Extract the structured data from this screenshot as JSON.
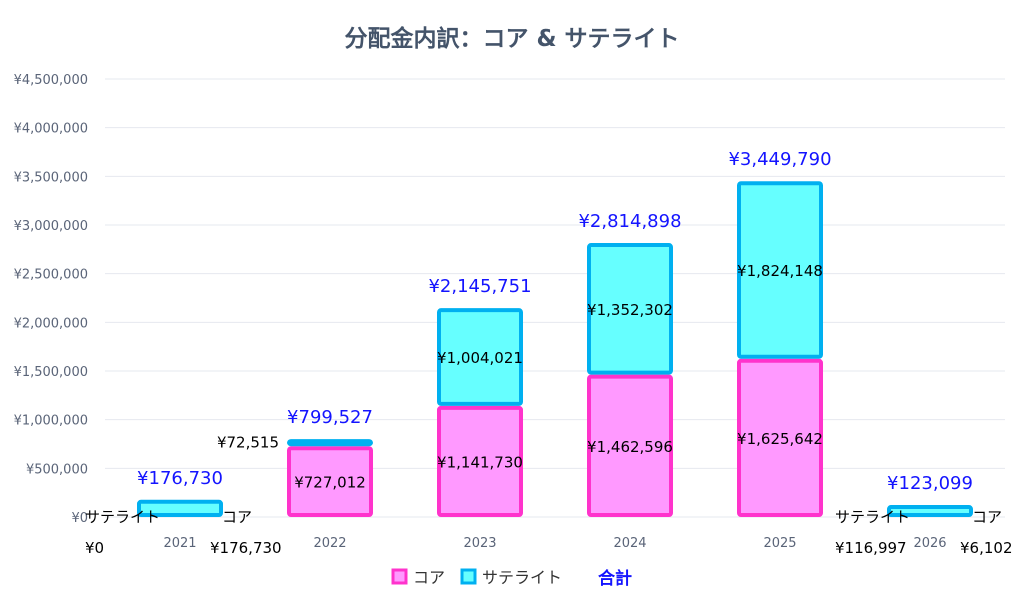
{
  "chart_data": {
    "type": "bar",
    "stacked": true,
    "title": "分配金内訳：コア & サテライト",
    "xlabel": "",
    "ylabel": "",
    "ylim": [
      0,
      4500000
    ],
    "y_ticks": [
      0,
      500000,
      1000000,
      1500000,
      2000000,
      2500000,
      3000000,
      3500000,
      4000000,
      4500000
    ],
    "y_tick_labels": [
      "¥0",
      "¥500,000",
      "¥1,000,000",
      "¥1,500,000",
      "¥2,000,000",
      "¥2,500,000",
      "¥3,000,000",
      "¥3,500,000",
      "¥4,000,000",
      "¥4,500,000"
    ],
    "grid": true,
    "categories": [
      "2021",
      "2022",
      "2023",
      "2024",
      "2025",
      "2026"
    ],
    "series": [
      {
        "name": "コア",
        "fill": "#ff99ff",
        "stroke": "#ff33cc",
        "values": [
          176730,
          727012,
          1141730,
          1462596,
          1625642,
          6102
        ],
        "labels": [
          "¥176,730",
          "¥727,012",
          "¥1,141,730",
          "¥1,462,596",
          "¥1,625,642",
          "¥6,102"
        ]
      },
      {
        "name": "サテライト",
        "fill": "#66ffff",
        "stroke": "#00b0f0",
        "values": [
          0,
          72515,
          1004021,
          1352302,
          1824148,
          116997
        ],
        "labels": [
          "¥0",
          "¥72,515",
          "¥1,004,021",
          "¥1,352,302",
          "¥1,824,148",
          "¥116,997"
        ]
      }
    ],
    "totals": {
      "name": "合計",
      "color": "#1414ff",
      "values": [
        176730,
        799527,
        2145751,
        2814898,
        3449790,
        123099
      ],
      "labels": [
        "¥176,730",
        "¥799,527",
        "¥2,145,751",
        "¥2,814,898",
        "¥3,449,790",
        "¥123,099"
      ]
    },
    "legend": "bottom"
  }
}
